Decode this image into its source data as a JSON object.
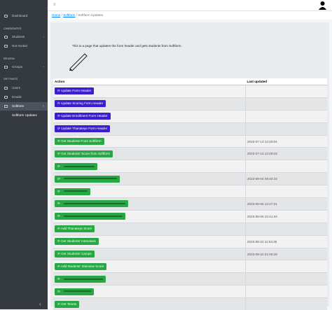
{
  "sidebar": {
    "items": [
      {
        "label": "Dashboard",
        "kind": "link"
      },
      {
        "label": "CANDIDATES",
        "kind": "heading"
      },
      {
        "label": "Students",
        "kind": "link",
        "caret": true
      },
      {
        "label": "Not Invited",
        "kind": "link"
      },
      {
        "label": "REVIEW",
        "kind": "heading"
      },
      {
        "label": "Groups",
        "kind": "link",
        "caret": true
      },
      {
        "label": "SETTINGS",
        "kind": "heading"
      },
      {
        "label": "Users",
        "kind": "link"
      },
      {
        "label": "Emails",
        "kind": "link"
      },
      {
        "label": "Softform",
        "kind": "link",
        "caret": true,
        "open": true
      },
      {
        "label": "Softform Updates",
        "kind": "sub"
      }
    ]
  },
  "breadcrumb": [
    "Home",
    "Softform",
    "Softform Updates"
  ],
  "description": "This is a page that updates the form header and gets students from Softform.",
  "table": {
    "headers": [
      "Action",
      "Last updated"
    ],
    "rows": [
      {
        "action": "Update Form Header",
        "style": "primary"
      },
      {
        "action": "Update Scoring Form Header",
        "style": "primary"
      },
      {
        "action": "Update Enrollment Form Header",
        "style": "primary"
      },
      {
        "action": "Update Thanateye Form Header",
        "style": "primary"
      },
      {
        "action": "Get Students From Softform",
        "style": "success",
        "last_updated": "2023-07-13 12:20:04"
      },
      {
        "action": "Get Students' Score from Softform",
        "style": "success",
        "last_updated": "2023-07-13 12:29:03"
      },
      {
        "style": "success"
      },
      {
        "style": "success",
        "last_updated": "2023-08-04 09:40:23"
      },
      {
        "style": "success"
      },
      {
        "style": "success",
        "last_updated": "2023-08-05 12:17:31"
      },
      {
        "style": "success",
        "last_updated": "2023-08-05 10:41:18"
      },
      {
        "action": "Add Thanateye Score",
        "style": "success"
      },
      {
        "action": "Get Students' Interviews",
        "style": "success",
        "last_updated": "2023-08-22 11:54:26"
      },
      {
        "action": "Get Students' Camps",
        "style": "success",
        "last_updated": "2023-08-22 01:00:29"
      },
      {
        "action": "Add Students' Interview Score",
        "style": "success"
      },
      {
        "style": "success"
      },
      {
        "style": "success"
      },
      {
        "action": "Get Tenets",
        "style": "success"
      }
    ]
  }
}
